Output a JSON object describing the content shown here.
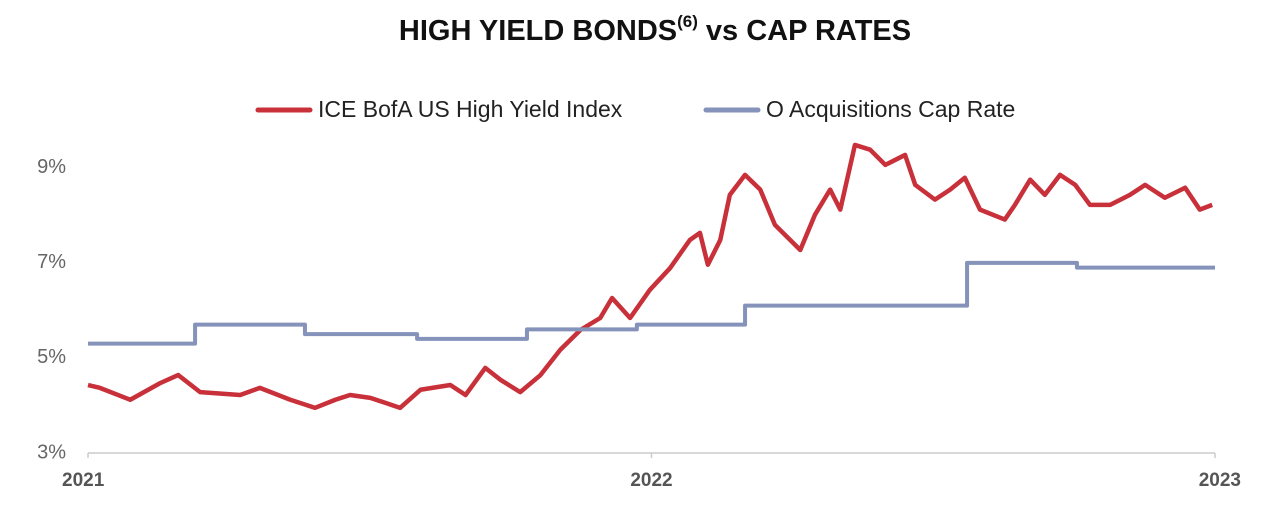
{
  "chart_data": {
    "type": "line",
    "title": "HIGH YIELD BONDS",
    "title_superscript": "(6)",
    "title_suffix": "vs CAP RATES",
    "xlim": [
      2021,
      2023
    ],
    "xticks": [
      2021,
      2022,
      2023
    ],
    "ylim": [
      3,
      9.5
    ],
    "yticks": [
      {
        "value": 3,
        "label": "3%"
      },
      {
        "value": 5,
        "label": "5%"
      },
      {
        "value": 7,
        "label": "7%"
      },
      {
        "value": 9,
        "label": "9%"
      }
    ],
    "grid": false,
    "series": [
      {
        "name": "ICE BofA US High Yield Index",
        "color": "#c8303a",
        "step": false,
        "x": [
          2021.0,
          2021.021,
          2021.075,
          2021.128,
          2021.16,
          2021.199,
          2021.27,
          2021.305,
          2021.359,
          2021.403,
          2021.439,
          2021.465,
          2021.501,
          2021.554,
          2021.59,
          2021.643,
          2021.67,
          2021.705,
          2021.732,
          2021.767,
          2021.803,
          2021.838,
          2021.874,
          2021.909,
          2021.93,
          2021.962,
          2021.997,
          2022.033,
          2022.068,
          2022.086,
          2022.1,
          2022.122,
          2022.139,
          2022.166,
          2022.193,
          2022.219,
          2022.264,
          2022.29,
          2022.317,
          2022.335,
          2022.361,
          2022.388,
          2022.415,
          2022.45,
          2022.468,
          2022.503,
          2022.53,
          2022.556,
          2022.583,
          2022.627,
          2022.645,
          2022.672,
          2022.698,
          2022.725,
          2022.752,
          2022.778,
          2022.814,
          2022.849,
          2022.876,
          2022.911,
          2022.947,
          2022.973,
          2022.995
        ],
        "values": [
          4.43,
          4.37,
          4.12,
          4.47,
          4.64,
          4.28,
          4.22,
          4.37,
          4.12,
          3.95,
          4.12,
          4.22,
          4.16,
          3.95,
          4.33,
          4.43,
          4.22,
          4.79,
          4.54,
          4.28,
          4.64,
          5.17,
          5.59,
          5.84,
          6.26,
          5.84,
          6.43,
          6.89,
          7.48,
          7.63,
          6.96,
          7.48,
          8.43,
          8.85,
          8.54,
          7.8,
          7.27,
          8.01,
          8.54,
          8.12,
          9.48,
          9.38,
          9.06,
          9.27,
          8.64,
          8.33,
          8.54,
          8.79,
          8.12,
          7.91,
          8.22,
          8.75,
          8.43,
          8.85,
          8.64,
          8.22,
          8.22,
          8.43,
          8.64,
          8.37,
          8.58,
          8.12,
          8.22
        ]
      },
      {
        "name": "O Acquisitions Cap Rate",
        "color": "#8593bb",
        "step": true,
        "x": [
          2021.0,
          2021.19,
          2021.385,
          2021.584,
          2021.779,
          2021.974,
          2022.166,
          2022.56,
          2022.755,
          2023.0
        ],
        "values": [
          5.3,
          5.7,
          5.5,
          5.4,
          5.6,
          5.7,
          6.1,
          7.0,
          6.9,
          6.9
        ]
      }
    ]
  }
}
